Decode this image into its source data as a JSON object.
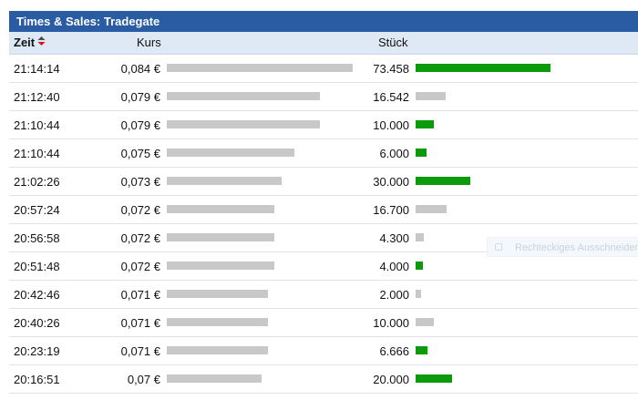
{
  "panel": {
    "title": "Times & Sales: Tradegate",
    "columns": {
      "zeit": "Zeit",
      "kurs": "Kurs",
      "stueck": "Stück"
    }
  },
  "colors": {
    "header_bg": "#2a5ca3",
    "subheader_bg": "#dfe8f5",
    "green": "#0a9a0a",
    "gray": "#c8c8c8",
    "sort_up": "#4a4a4a",
    "sort_down": "#d11"
  },
  "trades": [
    {
      "time": "21:14:14",
      "price": "0,084 €",
      "price_num": 0.084,
      "qty": "73.458",
      "qty_num": 73458,
      "color": "green"
    },
    {
      "time": "21:12:40",
      "price": "0,079 €",
      "price_num": 0.079,
      "qty": "16.542",
      "qty_num": 16542,
      "color": "gray"
    },
    {
      "time": "21:10:44",
      "price": "0,079 €",
      "price_num": 0.079,
      "qty": "10.000",
      "qty_num": 10000,
      "color": "green"
    },
    {
      "time": "21:10:44",
      "price": "0,075 €",
      "price_num": 0.075,
      "qty": "6.000",
      "qty_num": 6000,
      "color": "green"
    },
    {
      "time": "21:02:26",
      "price": "0,073 €",
      "price_num": 0.073,
      "qty": "30.000",
      "qty_num": 30000,
      "color": "green"
    },
    {
      "time": "20:57:24",
      "price": "0,072 €",
      "price_num": 0.072,
      "qty": "16.700",
      "qty_num": 16700,
      "color": "gray"
    },
    {
      "time": "20:56:58",
      "price": "0,072 €",
      "price_num": 0.072,
      "qty": "4.300",
      "qty_num": 4300,
      "color": "gray"
    },
    {
      "time": "20:51:48",
      "price": "0,072 €",
      "price_num": 0.072,
      "qty": "4.000",
      "qty_num": 4000,
      "color": "green"
    },
    {
      "time": "20:42:46",
      "price": "0,071 €",
      "price_num": 0.071,
      "qty": "2.000",
      "qty_num": 2000,
      "color": "gray"
    },
    {
      "time": "20:40:26",
      "price": "0,071 €",
      "price_num": 0.071,
      "qty": "10.000",
      "qty_num": 10000,
      "color": "gray"
    },
    {
      "time": "20:23:19",
      "price": "0,071 €",
      "price_num": 0.071,
      "qty": "6.666",
      "qty_num": 6666,
      "color": "green"
    },
    {
      "time": "20:16:51",
      "price": "0,07 €",
      "price_num": 0.07,
      "qty": "20.000",
      "qty_num": 20000,
      "color": "green"
    }
  ],
  "overlay": {
    "label": "Rechteckiges Ausschneiden",
    "icon": "selection-icon"
  }
}
